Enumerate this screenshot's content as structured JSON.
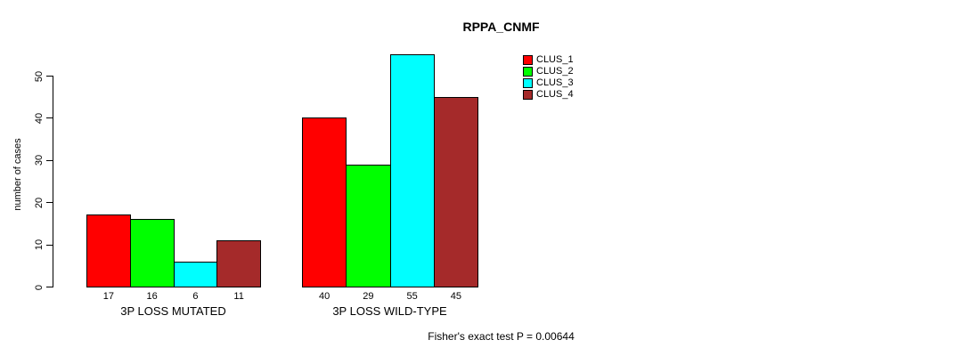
{
  "chart_data": {
    "type": "bar",
    "title": "RPPA_CNMF",
    "ylabel": "number of cases",
    "xlabel": "",
    "categories": [
      "3P LOSS MUTATED",
      "3P LOSS WILD-TYPE"
    ],
    "series": [
      {
        "name": "CLUS_1",
        "color": "#ff0000",
        "values": [
          17,
          40
        ]
      },
      {
        "name": "CLUS_2",
        "color": "#00ff00",
        "values": [
          16,
          29
        ]
      },
      {
        "name": "CLUS_3",
        "color": "#00ffff",
        "values": [
          6,
          55
        ]
      },
      {
        "name": "CLUS_4",
        "color": "#a52a2a",
        "values": [
          11,
          45
        ]
      }
    ],
    "yticks": [
      0,
      10,
      20,
      30,
      40,
      50
    ],
    "ylim": [
      0,
      55
    ],
    "grid": false,
    "legend_position": "top-right",
    "bar_value_labels": true,
    "annotation": "Fisher's exact test P = 0.00644"
  }
}
